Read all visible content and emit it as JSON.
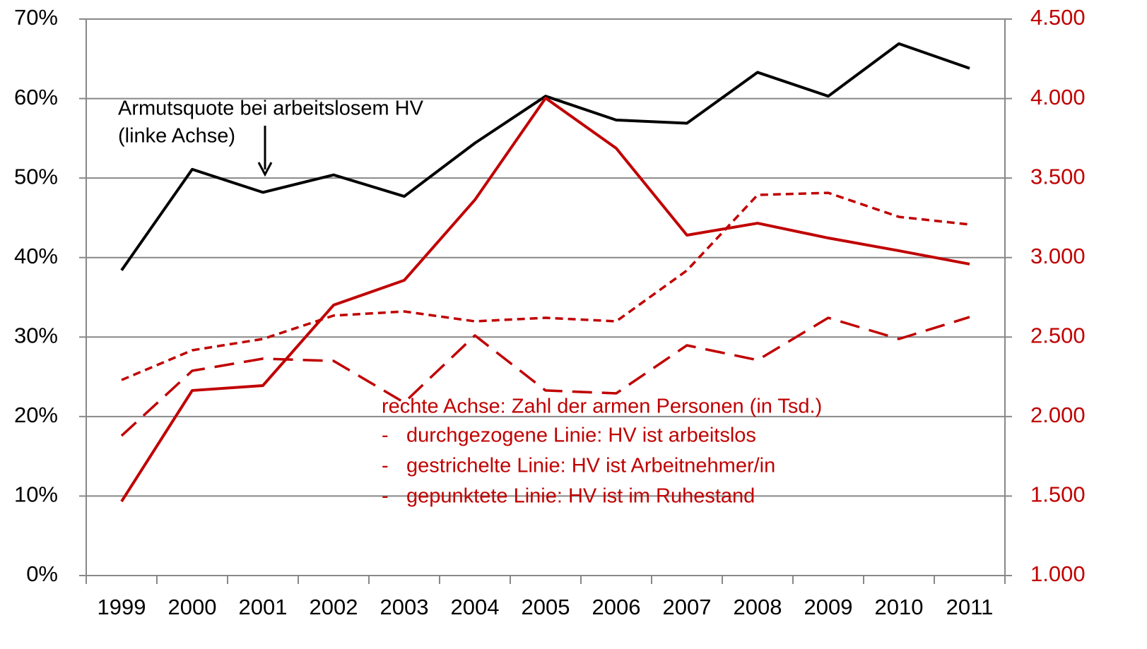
{
  "chart_data": {
    "type": "line",
    "categories": [
      "1999",
      "2000",
      "2001",
      "2002",
      "2003",
      "2004",
      "2005",
      "2006",
      "2007",
      "2008",
      "2009",
      "2010",
      "2011"
    ],
    "ylim": [
      0,
      70
    ],
    "yticks": [
      {
        "value": 0,
        "label": "0%"
      },
      {
        "value": 10,
        "label": "10%"
      },
      {
        "value": 20,
        "label": "20%"
      },
      {
        "value": 30,
        "label": "30%"
      },
      {
        "value": 40,
        "label": "40%"
      },
      {
        "value": 50,
        "label": "50%"
      },
      {
        "value": 60,
        "label": "60%"
      },
      {
        "value": 70,
        "label": "70%"
      }
    ],
    "y2lim": [
      1000,
      4500
    ],
    "y2ticks": [
      {
        "value": 1000,
        "label": "1.000"
      },
      {
        "value": 1500,
        "label": "1.500"
      },
      {
        "value": 2000,
        "label": "2.000"
      },
      {
        "value": 2500,
        "label": "2.500"
      },
      {
        "value": 3000,
        "label": "3.000"
      },
      {
        "value": 3500,
        "label": "3.500"
      },
      {
        "value": 4000,
        "label": "4.000"
      },
      {
        "value": 4500,
        "label": "4.500"
      }
    ],
    "y2color": "#c00000",
    "grid": true,
    "series": [
      {
        "color": "#000000",
        "style": "solid",
        "axis": "y",
        "values": [
          38.4,
          51.1,
          48.2,
          50.4,
          47.7,
          54.4,
          60.3,
          57.3,
          56.9,
          63.3,
          60.3,
          66.9,
          63.8
        ]
      },
      {
        "color": "#c00000",
        "style": "solid",
        "axis": "y2",
        "values": [
          1466,
          2164,
          2195,
          2701,
          2857,
          3363,
          4003,
          3687,
          3141,
          3216,
          3123,
          3043,
          2959
        ]
      },
      {
        "color": "#c00000",
        "style": "dashed",
        "axis": "y2",
        "values": [
          1879,
          2288,
          2364,
          2350,
          2088,
          2510,
          2164,
          2146,
          2448,
          2355,
          2621,
          2488,
          2626
        ]
      },
      {
        "color": "#c00000",
        "style": "dotted",
        "axis": "y2",
        "values": [
          2230,
          2417,
          2488,
          2635,
          2661,
          2599,
          2621,
          2599,
          2919,
          3394,
          3407,
          3256,
          3208
        ]
      }
    ],
    "annotations": {
      "left": [
        "Armutsquote bei arbeitslosem HV",
        "(linke Achse)"
      ],
      "right_title": "rechte Achse: Zahl der armen Personen (in Tsd.)",
      "bullet": "-",
      "right_items": [
        "durchgezogene Linie: HV ist arbeitslos",
        "gestrichelte Linie: HV ist Arbeitnehmer/in",
        "gepunktete Linie: HV ist im Ruhestand"
      ]
    }
  }
}
